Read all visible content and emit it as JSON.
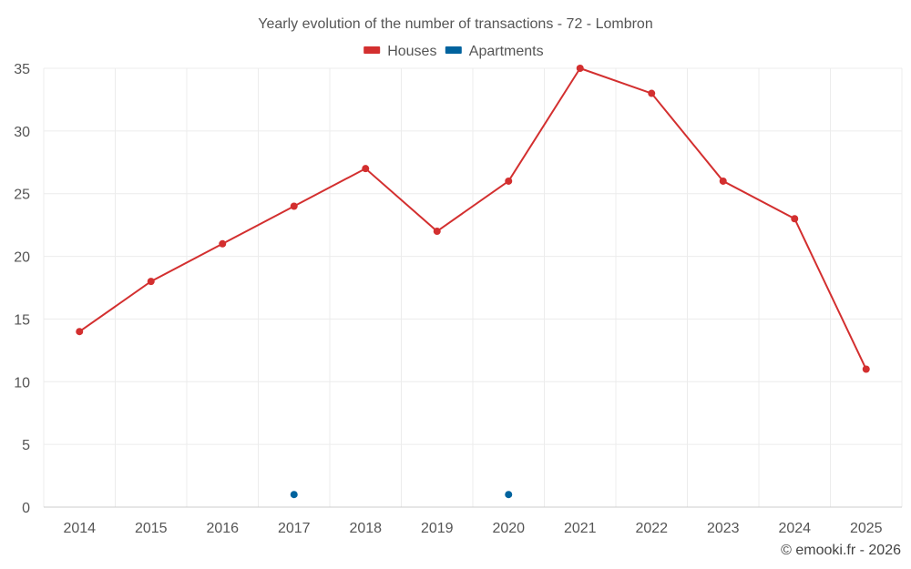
{
  "chart_data": {
    "type": "line",
    "title": "Yearly evolution of the number of transactions - 72 - Lombron",
    "categories": [
      "2014",
      "2015",
      "2016",
      "2017",
      "2018",
      "2019",
      "2020",
      "2021",
      "2022",
      "2023",
      "2024",
      "2025"
    ],
    "series": [
      {
        "name": "Houses",
        "color": "#d32f2f",
        "values": [
          14,
          18,
          21,
          24,
          27,
          22,
          26,
          35,
          33,
          26,
          23,
          11
        ]
      },
      {
        "name": "Apartments",
        "color": "#00639e",
        "values": [
          null,
          null,
          null,
          1,
          null,
          null,
          1,
          null,
          null,
          null,
          null,
          null
        ]
      }
    ],
    "ylim": [
      0,
      35
    ],
    "yticks": [
      0,
      5,
      10,
      15,
      20,
      25,
      30,
      35
    ],
    "xlabel": "",
    "ylabel": "",
    "grid": true,
    "legend_position": "top-center"
  },
  "footer": {
    "credit": "© emooki.fr - 2026"
  }
}
